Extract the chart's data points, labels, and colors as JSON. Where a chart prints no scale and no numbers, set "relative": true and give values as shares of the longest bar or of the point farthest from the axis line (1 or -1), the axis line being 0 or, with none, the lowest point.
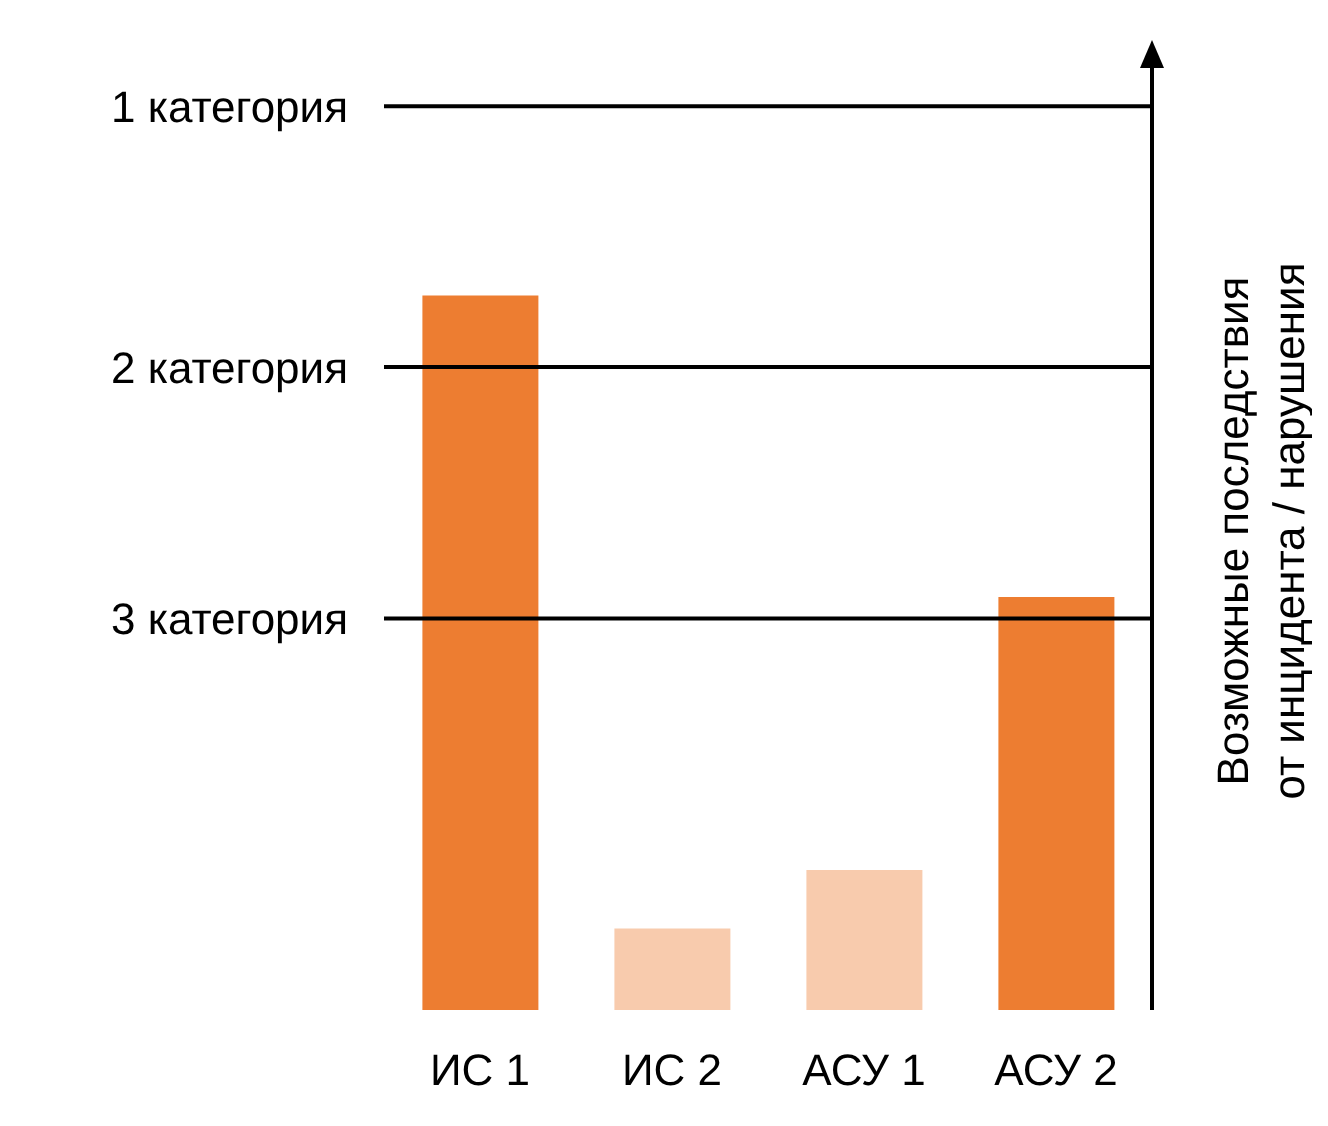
{
  "chart_data": {
    "type": "bar",
    "relative": true,
    "ylabel": "Возможные последствия от инцидента / нарушения",
    "categories": [
      "ИС 1",
      "ИС 2",
      "АСУ 1",
      "АСУ 2"
    ],
    "values": [
      1,
      0.114,
      0.196,
      0.578
    ],
    "colors": [
      "#ed7d31",
      "#f8cbad",
      "#f8cbad",
      "#ed7d31"
    ],
    "ref_lines": [
      {
        "axis": "y",
        "value": 1.265,
        "label": "1 категория",
        "color": "#000000"
      },
      {
        "axis": "y",
        "value": 0.9,
        "label": "2 категория",
        "color": "#000000"
      },
      {
        "axis": "y",
        "value": 0.548,
        "label": "3 категория",
        "color": "#000000"
      }
    ]
  }
}
